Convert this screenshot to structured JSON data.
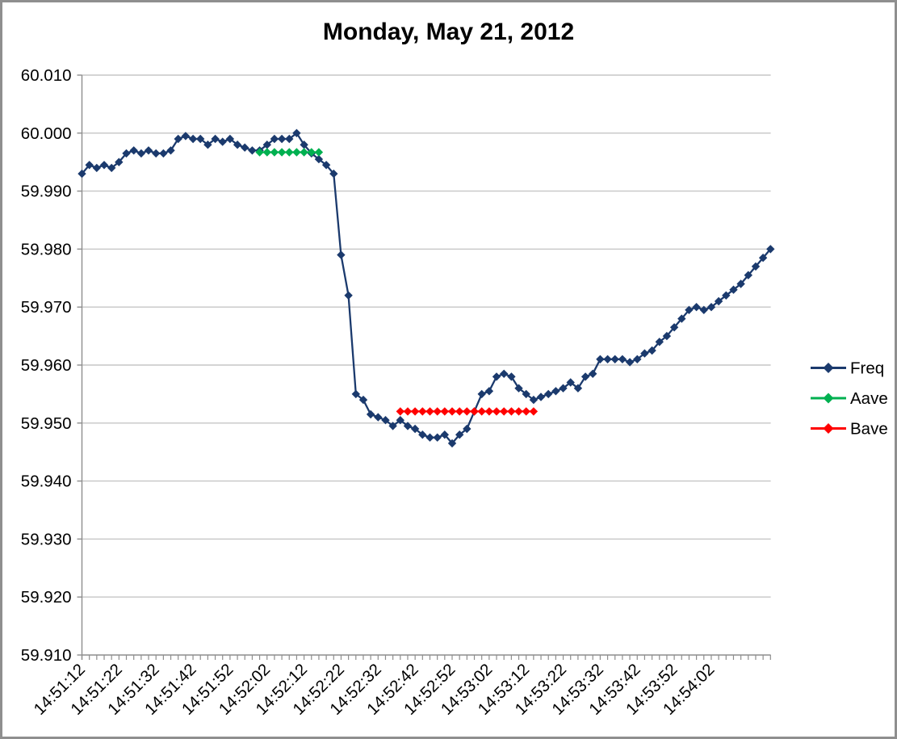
{
  "chart_data": {
    "type": "line",
    "title": "Monday, May 21, 2012",
    "x_interval_seconds": 2,
    "x_tick_labels": [
      "14:51:12",
      "14:51:22",
      "14:51:32",
      "14:51:42",
      "14:51:52",
      "14:52:02",
      "14:52:12",
      "14:52:22",
      "14:52:32",
      "14:52:42",
      "14:52:52",
      "14:53:02",
      "14:53:12",
      "14:53:22",
      "14:53:32",
      "14:53:42",
      "14:53:52",
      "14:54:02"
    ],
    "y_tick_labels": [
      "60.010",
      "60.000",
      "59.990",
      "59.980",
      "59.970",
      "59.960",
      "59.950",
      "59.940",
      "59.930",
      "59.920",
      "59.910"
    ],
    "ylim": [
      59.91,
      60.01
    ],
    "y_tick_step": 0.01,
    "grid": "horizontal",
    "legend_position": "right",
    "axis_color": "#8e8e8e",
    "gridline_color": "#c6c6c6",
    "series": [
      {
        "name": "Freq",
        "color": "#1b3a6d",
        "marker": "diamond",
        "start_time": "14:51:12",
        "values": [
          59.993,
          59.9945,
          59.994,
          59.9945,
          59.994,
          59.995,
          59.9965,
          59.997,
          59.9965,
          59.997,
          59.9965,
          59.9965,
          59.997,
          59.999,
          59.9995,
          59.999,
          59.999,
          59.998,
          59.999,
          59.9985,
          59.999,
          59.998,
          59.9975,
          59.997,
          59.997,
          59.998,
          59.999,
          59.999,
          59.999,
          60.0,
          59.998,
          59.9965,
          59.9955,
          59.9945,
          59.993,
          59.979,
          59.972,
          59.955,
          59.954,
          59.9515,
          59.951,
          59.9505,
          59.9495,
          59.9505,
          59.9495,
          59.949,
          59.948,
          59.9475,
          59.9475,
          59.948,
          59.9465,
          59.948,
          59.949,
          59.952,
          59.955,
          59.9555,
          59.958,
          59.9585,
          59.958,
          59.956,
          59.955,
          59.954,
          59.9545,
          59.955,
          59.9555,
          59.956,
          59.957,
          59.956,
          59.958,
          59.9585,
          59.961,
          59.961,
          59.961,
          59.961,
          59.9605,
          59.961,
          59.962,
          59.9625,
          59.964,
          59.965,
          59.9665,
          59.968,
          59.9695,
          59.97,
          59.9695,
          59.97,
          59.971,
          59.972,
          59.973,
          59.974,
          59.9755,
          59.977,
          59.9785,
          59.98
        ]
      },
      {
        "name": "Aave",
        "color": "#00b050",
        "marker": "diamond",
        "start_time": "14:52:00",
        "values": [
          59.9967,
          59.9967,
          59.9967,
          59.9967,
          59.9967,
          59.9967,
          59.9967,
          59.9967,
          59.9967
        ]
      },
      {
        "name": "Bave",
        "color": "#ff0000",
        "marker": "diamond",
        "start_time": "14:52:38",
        "values": [
          59.952,
          59.952,
          59.952,
          59.952,
          59.952,
          59.952,
          59.952,
          59.952,
          59.952,
          59.952,
          59.952,
          59.952,
          59.952,
          59.952,
          59.952,
          59.952,
          59.952,
          59.952,
          59.952
        ]
      }
    ]
  }
}
